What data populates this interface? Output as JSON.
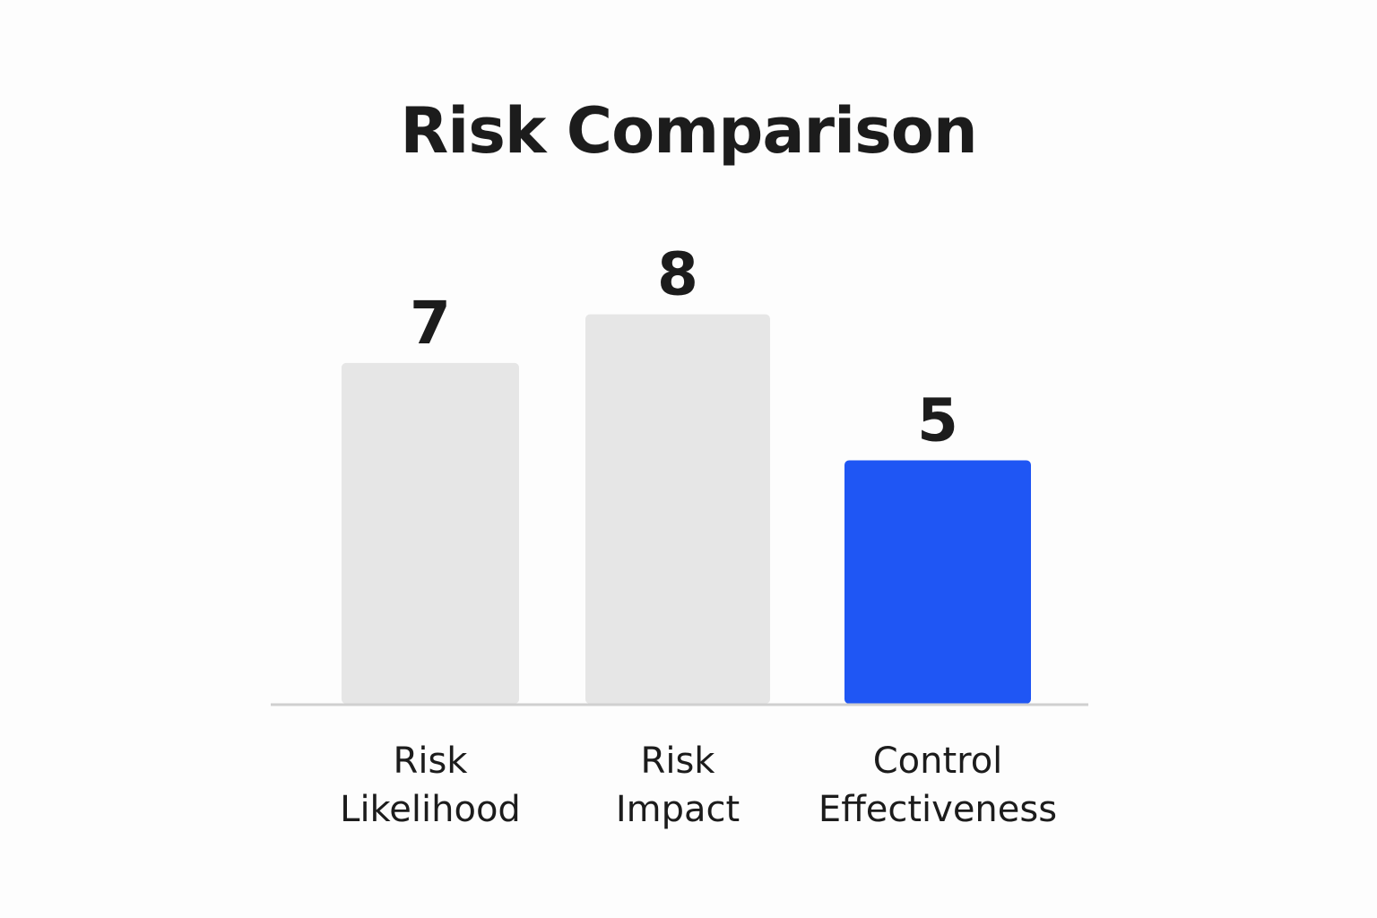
{
  "chart_data": {
    "type": "bar",
    "title": "Risk Comparison",
    "categories": [
      [
        "Risk",
        "Likelihood"
      ],
      [
        "Risk",
        "Impact"
      ],
      [
        "Control",
        "Effectiveness"
      ]
    ],
    "values": [
      7,
      8,
      5
    ],
    "bar_colors": [
      "#e6e6e6",
      "#e6e6e6",
      "#1f56f4"
    ],
    "axis_color": "#d0d0d0",
    "ylim": [
      0,
      10
    ],
    "grid": false,
    "legend": "none"
  }
}
